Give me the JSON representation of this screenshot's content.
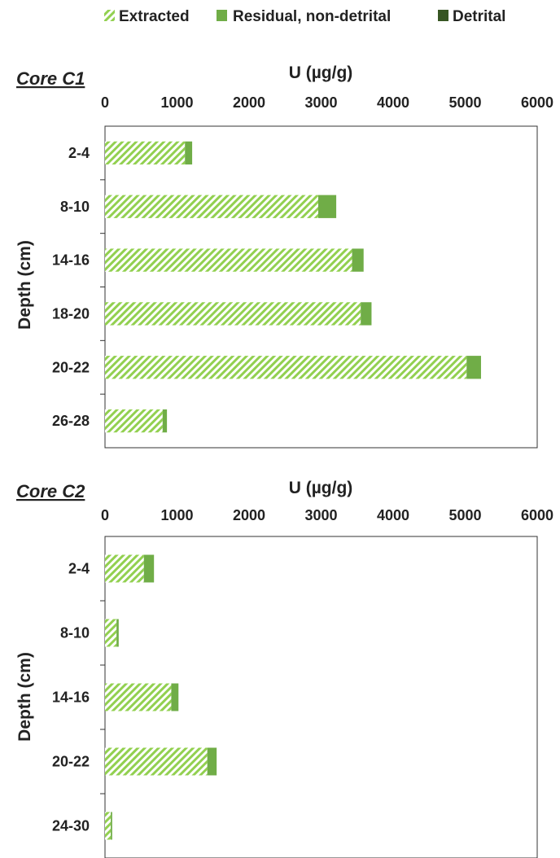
{
  "legend": {
    "items": [
      {
        "label": "Extracted",
        "swatch": "hatch"
      },
      {
        "label": "Residual, non-detrital",
        "swatch": "#70ad47"
      },
      {
        "label": "Detrital",
        "swatch": "#375623"
      }
    ],
    "position": "top"
  },
  "colors": {
    "hatch_fg": "#92d050",
    "residual": "#70ad47",
    "detrital": "#375623",
    "axis": "#333333"
  },
  "chart_data": [
    {
      "type": "bar",
      "orientation": "horizontal",
      "stacked": true,
      "title": "Core C1",
      "xlabel": "U (µg/g)",
      "ylabel": "Depth (cm)",
      "xlim": [
        0,
        6000
      ],
      "xticks": [
        0,
        1000,
        2000,
        3000,
        4000,
        5000,
        6000
      ],
      "x_axis_position": "top",
      "grid": false,
      "categories": [
        "2-4",
        "8-10",
        "14-16",
        "18-20",
        "20-22",
        "26-28"
      ],
      "series": [
        {
          "name": "Extracted",
          "values": [
            1110,
            2960,
            3430,
            3550,
            5020,
            800
          ]
        },
        {
          "name": "Residual, non-detrital",
          "values": [
            100,
            250,
            160,
            150,
            200,
            60
          ]
        },
        {
          "name": "Detrital",
          "values": [
            0,
            0,
            0,
            0,
            0,
            0
          ]
        }
      ]
    },
    {
      "type": "bar",
      "orientation": "horizontal",
      "stacked": true,
      "title": "Core C2",
      "xlabel": "U (µg/g)",
      "ylabel": "Depth (cm)",
      "xlim": [
        0,
        6000
      ],
      "xticks": [
        0,
        1000,
        2000,
        3000,
        4000,
        5000,
        6000
      ],
      "x_axis_position": "top",
      "grid": false,
      "categories": [
        "2-4",
        "8-10",
        "14-16",
        "20-22",
        "24-30"
      ],
      "series": [
        {
          "name": "Extracted",
          "values": [
            540,
            160,
            920,
            1420,
            80
          ]
        },
        {
          "name": "Residual, non-detrital",
          "values": [
            140,
            30,
            100,
            130,
            20
          ]
        },
        {
          "name": "Detrital",
          "values": [
            0,
            0,
            0,
            0,
            0
          ]
        }
      ]
    }
  ]
}
